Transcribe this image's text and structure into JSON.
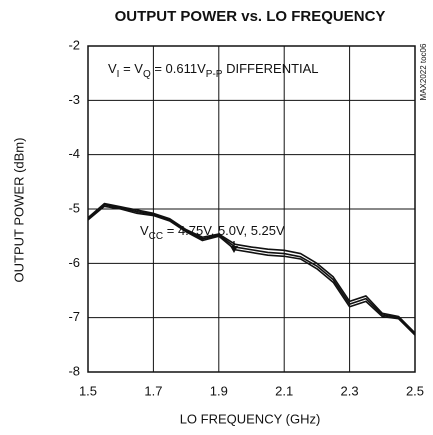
{
  "chart_data": {
    "type": "line",
    "title": "OUTPUT POWER vs. LO FREQUENCY",
    "x_label": "LO FREQUENCY (GHz)",
    "y_label": "OUTPUT POWER (dBm)",
    "side_label": "MAX2022 toc06",
    "annotations": [
      [
        {
          "text": "V",
          "sub": false
        },
        {
          "text": "I",
          "sub": true
        },
        {
          "text": " = V",
          "sub": false
        },
        {
          "text": "Q",
          "sub": true
        },
        {
          "text": " = 0.611V",
          "sub": false
        },
        {
          "text": "P-P",
          "sub": true
        },
        {
          "text": " DIFFERENTIAL",
          "sub": false
        }
      ],
      [
        {
          "text": "V",
          "sub": false
        },
        {
          "text": "CC",
          "sub": true
        },
        {
          "text": " = 4.75V, 5.0V, 5.25V",
          "sub": false
        }
      ]
    ],
    "x": [
      1.5,
      1.55,
      1.6,
      1.65,
      1.7,
      1.75,
      1.8,
      1.85,
      1.9,
      1.95,
      2.0,
      2.05,
      2.1,
      2.15,
      2.2,
      2.25,
      2.3,
      2.35,
      2.4,
      2.45,
      2.5
    ],
    "series": [
      {
        "color": "#111111",
        "values": [
          -5.2,
          -4.95,
          -5.0,
          -5.08,
          -5.12,
          -5.22,
          -5.42,
          -5.58,
          -5.5,
          -5.75,
          -5.8,
          -5.85,
          -5.87,
          -5.92,
          -6.1,
          -6.35,
          -6.8,
          -6.7,
          -6.98,
          -7.02,
          -7.32
        ]
      },
      {
        "color": "#111111",
        "values": [
          -5.18,
          -4.92,
          -4.98,
          -5.05,
          -5.1,
          -5.2,
          -5.4,
          -5.55,
          -5.48,
          -5.7,
          -5.75,
          -5.8,
          -5.82,
          -5.88,
          -6.05,
          -6.3,
          -6.75,
          -6.65,
          -6.95,
          -7.0,
          -7.3
        ]
      },
      {
        "color": "#111111",
        "values": [
          -5.16,
          -4.9,
          -4.96,
          -5.02,
          -5.08,
          -5.18,
          -5.38,
          -5.52,
          -5.46,
          -5.65,
          -5.7,
          -5.74,
          -5.76,
          -5.82,
          -6.0,
          -6.25,
          -6.7,
          -6.6,
          -6.92,
          -6.98,
          -7.28
        ]
      }
    ],
    "xlim": [
      1.5,
      2.5
    ],
    "xticks": [
      1.5,
      1.7,
      1.9,
      2.1,
      2.3,
      2.5
    ],
    "ylim": [
      -8,
      -2
    ],
    "yticks": [
      -8,
      -7,
      -6,
      -5,
      -4,
      -3,
      -2
    ],
    "grid": true
  }
}
